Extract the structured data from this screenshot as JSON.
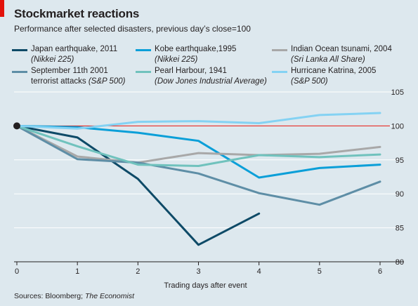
{
  "header": {
    "title": "Stockmarket reactions",
    "subtitle": "Performance after selected disasters, previous day’s close=100"
  },
  "source": {
    "prefix": "Sources: Bloomberg; ",
    "publication": "The Economist"
  },
  "colors": {
    "background": "#dde8ee",
    "accent_red": "#e3120b",
    "grid": "#ffffff"
  },
  "legend": [
    {
      "label": "Japan earthquake, 2011",
      "sub": "(Nikkei 225)"
    },
    {
      "label": "September 11th 2001",
      "sub_line": "terrorist attacks",
      "sub": "(S&P 500)"
    },
    {
      "label": "Kobe earthquake,1995",
      "sub": "(Nikkei 225)"
    },
    {
      "label": "Pearl Harbour, 1941",
      "sub": "(Dow Jones Industrial Average)"
    },
    {
      "label": "Indian Ocean tsunami, 2004",
      "sub": "(Sri Lanka All Share)"
    },
    {
      "label": "Hurricane Katrina, 2005",
      "sub": "(S&P 500)"
    }
  ],
  "chart_data": {
    "type": "line",
    "title": "Stockmarket reactions",
    "xlabel": "Trading days after event",
    "ylabel": "",
    "x": [
      0,
      1,
      2,
      3,
      4,
      5,
      6
    ],
    "xlim": [
      0,
      6
    ],
    "ylim": [
      80,
      105
    ],
    "yticks": [
      80,
      85,
      90,
      95,
      100,
      105
    ],
    "reference_line": 100,
    "y_axis_side": "right",
    "grid": true,
    "series": [
      {
        "name": "Japan earthquake, 2011",
        "color": "#0e4a67",
        "x": [
          0,
          1,
          2,
          3,
          4
        ],
        "values": [
          100,
          98.3,
          92.2,
          82.5,
          87.1
        ]
      },
      {
        "name": "Kobe earthquake,1995",
        "color": "#0b9fd8",
        "x": [
          0,
          1,
          2,
          3,
          4,
          5,
          6
        ],
        "values": [
          100,
          99.8,
          99.0,
          97.8,
          92.4,
          93.8,
          94.3
        ]
      },
      {
        "name": "Indian Ocean tsunami, 2004",
        "color": "#a8a8a8",
        "x": [
          0,
          1,
          2,
          3,
          4,
          5,
          6
        ],
        "values": [
          100,
          95.5,
          94.6,
          96.0,
          95.7,
          95.9,
          96.9
        ]
      },
      {
        "name": "September 11th 2001 terrorist attacks",
        "color": "#5e8ea6",
        "x": [
          0,
          1,
          2,
          3,
          4,
          5,
          6
        ],
        "values": [
          100,
          95.1,
          94.6,
          93.0,
          90.1,
          88.4,
          91.8
        ]
      },
      {
        "name": "Pearl Harbour, 1941",
        "color": "#70c2bd",
        "x": [
          0,
          1,
          2,
          3,
          4,
          5,
          6
        ],
        "values": [
          100,
          97.0,
          94.3,
          94.1,
          95.7,
          95.4,
          95.8
        ]
      },
      {
        "name": "Hurricane Katrina, 2005",
        "color": "#84d2f3",
        "x": [
          0,
          1,
          2,
          3,
          4,
          5,
          6
        ],
        "values": [
          100,
          99.6,
          100.6,
          100.7,
          100.4,
          101.6,
          101.9
        ]
      }
    ]
  }
}
